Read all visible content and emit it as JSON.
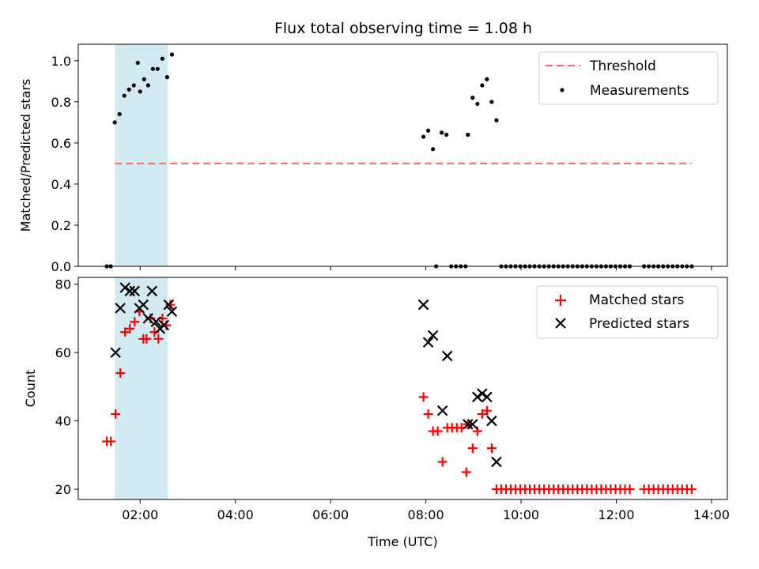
{
  "chart_data": [
    {
      "type": "scatter",
      "title": "Flux total observing time = 1.08 h",
      "xlabel": "",
      "ylabel": "Matched/Predicted stars",
      "ylim": [
        0,
        1.08
      ],
      "yticks": [
        "0.0",
        "0.2",
        "0.4",
        "0.6",
        "0.8",
        "1.0"
      ],
      "legend": "top-right",
      "highlight_span": [
        "01:28",
        "02:35"
      ],
      "threshold": {
        "name": "Threshold",
        "value": 0.5,
        "x_range": [
          "01:28",
          "13:35"
        ],
        "color": "#ff6666"
      },
      "series": [
        {
          "name": "Measurements",
          "color": "#000000",
          "marker": "dot",
          "points": [
            [
              "01:18",
              0
            ],
            [
              "01:23",
              0
            ],
            [
              "01:28",
              0.7
            ],
            [
              "01:34",
              0.74
            ],
            [
              "01:40",
              0.83
            ],
            [
              "01:46",
              0.86
            ],
            [
              "01:52",
              0.88
            ],
            [
              "01:57",
              0.99
            ],
            [
              "02:00",
              0.85
            ],
            [
              "02:05",
              0.91
            ],
            [
              "02:10",
              0.88
            ],
            [
              "02:16",
              0.96
            ],
            [
              "02:22",
              0.96
            ],
            [
              "02:28",
              1.01
            ],
            [
              "02:34",
              0.92
            ],
            [
              "02:40",
              1.03
            ],
            [
              "07:57",
              0.63
            ],
            [
              "08:03",
              0.66
            ],
            [
              "08:09",
              0.57
            ],
            [
              "08:13",
              0
            ],
            [
              "08:20",
              0.65
            ],
            [
              "08:26",
              0.64
            ],
            [
              "08:32",
              0
            ],
            [
              "08:38",
              0
            ],
            [
              "08:44",
              0
            ],
            [
              "08:50",
              0
            ],
            [
              "08:53",
              0.64
            ],
            [
              "08:59",
              0.82
            ],
            [
              "09:05",
              0.79
            ],
            [
              "09:11",
              0.88
            ],
            [
              "09:17",
              0.91
            ],
            [
              "09:23",
              0.8
            ],
            [
              "09:29",
              0.71
            ],
            [
              "09:35",
              0
            ],
            [
              "09:41",
              0
            ],
            [
              "09:47",
              0
            ],
            [
              "09:53",
              0
            ],
            [
              "09:59",
              0
            ],
            [
              "10:05",
              0
            ],
            [
              "10:11",
              0
            ],
            [
              "10:17",
              0
            ],
            [
              "10:23",
              0
            ],
            [
              "10:29",
              0
            ],
            [
              "10:35",
              0
            ],
            [
              "10:41",
              0
            ],
            [
              "10:47",
              0
            ],
            [
              "10:53",
              0
            ],
            [
              "10:59",
              0
            ],
            [
              "11:05",
              0
            ],
            [
              "11:11",
              0
            ],
            [
              "11:17",
              0
            ],
            [
              "11:23",
              0
            ],
            [
              "11:29",
              0
            ],
            [
              "11:35",
              0
            ],
            [
              "11:41",
              0
            ],
            [
              "11:47",
              0
            ],
            [
              "11:53",
              0
            ],
            [
              "11:59",
              0
            ],
            [
              "12:05",
              0
            ],
            [
              "12:11",
              0
            ],
            [
              "12:17",
              0
            ],
            [
              "12:35",
              0
            ],
            [
              "12:41",
              0
            ],
            [
              "12:47",
              0
            ],
            [
              "12:53",
              0
            ],
            [
              "12:59",
              0
            ],
            [
              "13:05",
              0
            ],
            [
              "13:11",
              0
            ],
            [
              "13:17",
              0
            ],
            [
              "13:23",
              0
            ],
            [
              "13:29",
              0
            ],
            [
              "13:35",
              0
            ]
          ]
        }
      ]
    },
    {
      "type": "scatter",
      "title": "",
      "xlabel": "Time (UTC)",
      "ylabel": "Count",
      "ylim": [
        17,
        82
      ],
      "yticks": [
        "20",
        "40",
        "60",
        "80"
      ],
      "xlim": [
        "00:42",
        "14:20"
      ],
      "xticks": [
        "02:00",
        "04:00",
        "06:00",
        "08:00",
        "10:00",
        "12:00",
        "14:00"
      ],
      "legend": "top-right",
      "highlight_span": [
        "01:28",
        "02:35"
      ],
      "series": [
        {
          "name": "Matched stars",
          "color": "#ff0000",
          "marker": "plus",
          "points": [
            [
              "01:18",
              34
            ],
            [
              "01:23",
              34
            ],
            [
              "01:29",
              42
            ],
            [
              "01:35",
              54
            ],
            [
              "01:41",
              66
            ],
            [
              "01:47",
              67
            ],
            [
              "01:53",
              69
            ],
            [
              "01:59",
              72
            ],
            [
              "02:04",
              64
            ],
            [
              "02:08",
              64
            ],
            [
              "02:13",
              70
            ],
            [
              "02:18",
              66
            ],
            [
              "02:23",
              64
            ],
            [
              "02:28",
              70
            ],
            [
              "02:33",
              68
            ],
            [
              "02:38",
              74
            ],
            [
              "07:57",
              47
            ],
            [
              "08:03",
              42
            ],
            [
              "08:09",
              37
            ],
            [
              "08:15",
              37
            ],
            [
              "08:21",
              28
            ],
            [
              "08:27",
              38
            ],
            [
              "08:33",
              38
            ],
            [
              "08:39",
              38
            ],
            [
              "08:45",
              38
            ],
            [
              "08:51",
              25
            ],
            [
              "08:53",
              39
            ],
            [
              "08:59",
              32
            ],
            [
              "09:05",
              37
            ],
            [
              "09:11",
              42
            ],
            [
              "09:17",
              43
            ],
            [
              "09:23",
              32
            ],
            [
              "09:29",
              20
            ],
            [
              "09:35",
              20
            ],
            [
              "09:41",
              20
            ],
            [
              "09:47",
              20
            ],
            [
              "09:53",
              20
            ],
            [
              "09:59",
              20
            ],
            [
              "10:05",
              20
            ],
            [
              "10:11",
              20
            ],
            [
              "10:17",
              20
            ],
            [
              "10:23",
              20
            ],
            [
              "10:29",
              20
            ],
            [
              "10:35",
              20
            ],
            [
              "10:41",
              20
            ],
            [
              "10:47",
              20
            ],
            [
              "10:53",
              20
            ],
            [
              "10:59",
              20
            ],
            [
              "11:05",
              20
            ],
            [
              "11:11",
              20
            ],
            [
              "11:17",
              20
            ],
            [
              "11:23",
              20
            ],
            [
              "11:29",
              20
            ],
            [
              "11:35",
              20
            ],
            [
              "11:41",
              20
            ],
            [
              "11:47",
              20
            ],
            [
              "11:53",
              20
            ],
            [
              "11:59",
              20
            ],
            [
              "12:05",
              20
            ],
            [
              "12:11",
              20
            ],
            [
              "12:17",
              20
            ],
            [
              "12:35",
              20
            ],
            [
              "12:41",
              20
            ],
            [
              "12:47",
              20
            ],
            [
              "12:53",
              20
            ],
            [
              "12:59",
              20
            ],
            [
              "13:05",
              20
            ],
            [
              "13:11",
              20
            ],
            [
              "13:17",
              20
            ],
            [
              "13:23",
              20
            ],
            [
              "13:29",
              20
            ],
            [
              "13:35",
              20
            ]
          ]
        },
        {
          "name": "Predicted stars",
          "color": "#000000",
          "marker": "x",
          "points": [
            [
              "01:29",
              60
            ],
            [
              "01:35",
              73
            ],
            [
              "01:41",
              79
            ],
            [
              "01:47",
              78
            ],
            [
              "01:53",
              78
            ],
            [
              "01:59",
              73
            ],
            [
              "02:04",
              74
            ],
            [
              "02:10",
              70
            ],
            [
              "02:15",
              78
            ],
            [
              "02:20",
              69
            ],
            [
              "02:25",
              67
            ],
            [
              "02:30",
              68
            ],
            [
              "02:36",
              74
            ],
            [
              "02:40",
              72
            ],
            [
              "07:57",
              74
            ],
            [
              "08:03",
              63
            ],
            [
              "08:09",
              65
            ],
            [
              "08:21",
              43
            ],
            [
              "08:27",
              59
            ],
            [
              "08:53",
              39
            ],
            [
              "08:59",
              39
            ],
            [
              "09:05",
              47
            ],
            [
              "09:11",
              48
            ],
            [
              "09:17",
              47
            ],
            [
              "09:23",
              40
            ],
            [
              "09:29",
              28
            ]
          ]
        }
      ]
    }
  ]
}
